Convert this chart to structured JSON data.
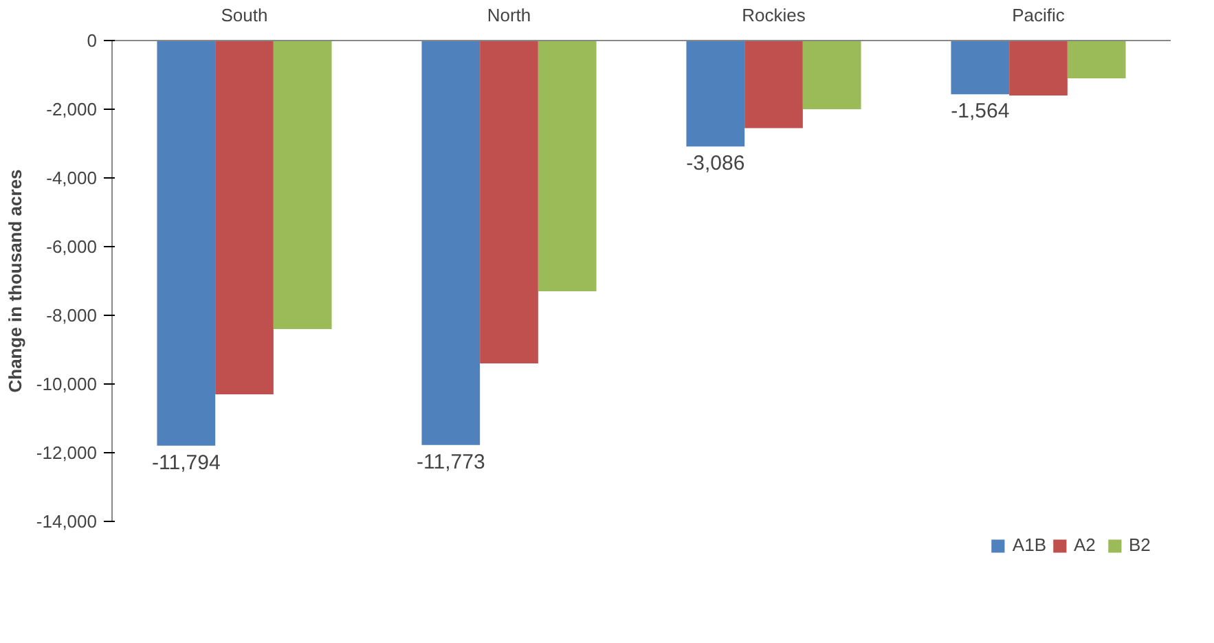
{
  "chart_data": {
    "type": "bar",
    "ylabel": "Change in thousand acres",
    "categories": [
      "South",
      "North",
      "Rockies",
      "Pacific"
    ],
    "series": [
      {
        "name": "A1B",
        "color": "#4f81bd",
        "values": [
          -11794,
          -11773,
          -3086,
          -1564
        ],
        "value_labels": [
          "-11,794",
          "-11,773",
          "-3,086",
          "-1,564"
        ]
      },
      {
        "name": "A2",
        "color": "#c0504d",
        "values": [
          -10300,
          -9400,
          -2550,
          -1600
        ]
      },
      {
        "name": "B2",
        "color": "#9bbb59",
        "values": [
          -8400,
          -7300,
          -2000,
          -1100
        ]
      }
    ],
    "ylim": [
      -14000,
      0
    ],
    "yticks": [
      {
        "value": -14000,
        "label": "-14,000"
      },
      {
        "value": -12000,
        "label": "-12,000"
      },
      {
        "value": -10000,
        "label": "-10,000"
      },
      {
        "value": -8000,
        "label": "-8,000"
      },
      {
        "value": -6000,
        "label": "-6,000"
      },
      {
        "value": -4000,
        "label": "-4,000"
      },
      {
        "value": -2000,
        "label": "-2,000"
      },
      0
    ],
    "grid": false,
    "legend": "bottom"
  }
}
